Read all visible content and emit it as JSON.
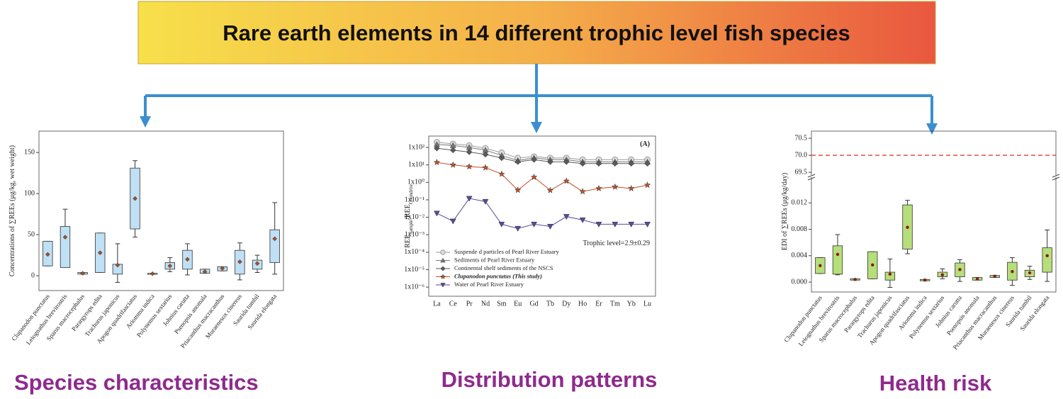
{
  "header": {
    "title": "Rare earth elements in 14 different trophic level fish species"
  },
  "chart_data": [
    {
      "type": "box",
      "caption": "Species characteristics",
      "ylabel": "Concentrations of ∑REEs (μg/kg, wet weight)",
      "categories": [
        "Clupanodon punctatus",
        "Leiognathus brevirostris",
        "Sparus macrocephalus",
        "Parargyrops edita",
        "Trachurus japonicus",
        "Apogon quadrifasciatus",
        "Ariomma indica",
        "Polynemus sextarius",
        "Johnius carutta",
        "Psenopsis anomala",
        "Priacanthus macracanthus",
        "Muraenesox cinereus",
        "Saurida tumbil",
        "Saurida elongata"
      ],
      "min": [
        12,
        13,
        2,
        4,
        -8,
        47,
        2,
        5,
        1,
        3,
        6,
        -5,
        4,
        2
      ],
      "q1": [
        12,
        10,
        2,
        4,
        2,
        57,
        2,
        8,
        8,
        3,
        6,
        2,
        8,
        16
      ],
      "q3": [
        42,
        60,
        4,
        52,
        14,
        131,
        3,
        16,
        31,
        8,
        11,
        31,
        19,
        56
      ],
      "max": [
        42,
        81,
        4,
        52,
        39,
        140,
        3,
        22,
        39,
        8,
        11,
        40,
        25,
        89
      ],
      "mean": [
        26,
        47,
        3,
        28,
        13,
        94,
        2.5,
        12,
        20,
        5,
        9,
        17,
        15,
        45
      ],
      "color": "#bfe0f5",
      "mean_color": "#a0502a",
      "ylim": [
        -18,
        176
      ],
      "yticks": [
        0,
        50,
        100,
        150
      ]
    },
    {
      "type": "line",
      "caption": "Distribution patterns",
      "ylabel_parts": [
        "REE",
        "Sample",
        "/REE",
        "Chondrite"
      ],
      "annotations": [
        "(A)",
        "Trophic level=2.9±0.29"
      ],
      "log_scale": true,
      "categories": [
        "La",
        "Ce",
        "Pr",
        "Nd",
        "Sm",
        "Eu",
        "Gd",
        "Tb",
        "Dy",
        "Ho",
        "Er",
        "Tm",
        "Yb",
        "Lu"
      ],
      "series": [
        {
          "name": "Suspende d particles of Pearl River Estuary",
          "color": "#9a9a9a",
          "marker": "circle",
          "values": [
            200,
            160,
            130,
            90,
            50,
            25,
            30,
            25,
            25,
            20,
            20,
            20,
            20,
            20
          ]
        },
        {
          "name": "Sediments of Pearl River Estuary",
          "color": "#7a7a7a",
          "marker": "triangle",
          "values": [
            150,
            130,
            100,
            70,
            35,
            18,
            25,
            20,
            20,
            15,
            15,
            15,
            15,
            15
          ]
        },
        {
          "name": "Continental shelf sediments of the NSCS",
          "color": "#5a5a5a",
          "marker": "diamond",
          "values": [
            90,
            70,
            55,
            40,
            25,
            15,
            20,
            15,
            15,
            12,
            12,
            12,
            12,
            12
          ]
        },
        {
          "name": "Clupanodon punctatus  (This study)",
          "color": "#c0502a",
          "marker": "star",
          "values": [
            14,
            10,
            8,
            7,
            3,
            0.36,
            2,
            0.35,
            1.2,
            0.3,
            0.45,
            0.55,
            0.45,
            0.7
          ]
        },
        {
          "name": "Water of Pearl River Estuary",
          "color": "#5a4a9a",
          "marker": "triangle-down",
          "values": [
            0.017,
            0.006,
            0.12,
            0.08,
            0.004,
            0.0023,
            0.004,
            0.003,
            0.011,
            0.007,
            0.004,
            0.004,
            0.004,
            0.004
          ]
        }
      ],
      "ylim": [
        3e-07,
        450
      ],
      "yticks": [
        {
          "value": 100,
          "label": "1x10²"
        },
        {
          "value": 10,
          "label": "1x10¹"
        },
        {
          "value": 1,
          "label": "1x10⁰"
        },
        {
          "value": 0.1,
          "label": "1x10⁻¹"
        },
        {
          "value": 0.01,
          "label": "1x10⁻²"
        },
        {
          "value": 0.001,
          "label": "1x10⁻³"
        },
        {
          "value": 0.0001,
          "label": "1x10⁻⁴"
        },
        {
          "value": 1e-05,
          "label": "1x10⁻⁵"
        },
        {
          "value": 1e-06,
          "label": "1x10⁻⁶"
        }
      ]
    },
    {
      "type": "box",
      "caption": "Health risk",
      "ylabel": "EDI of ∑REEs (μg/kg/day)",
      "categories": [
        "Clupanodon punctatus",
        "Leiognathus brevirostris",
        "Sparus macrocephalus",
        "Parargyrops edita",
        "Trachurus japonicus",
        "Apogon quadrifasciatus",
        "Ariomma indica",
        "Polynemus sextarius",
        "Johnius carutta",
        "Psenopsis anomala",
        "Priacanthus macracanthus",
        "Muraenesox cinereus",
        "Saurida tumbil",
        "Saurida elongata"
      ],
      "min": [
        0.0013,
        0.0011,
        0.0003,
        0.0005,
        -0.0008,
        0.0043,
        0.0002,
        0.0005,
        0.0001,
        0.0003,
        0.0007,
        -0.0005,
        0.0004,
        0.0001
      ],
      "q1": [
        0.0013,
        0.0012,
        0.0003,
        0.0005,
        0.0003,
        0.005,
        0.0002,
        0.0008,
        0.0008,
        0.0003,
        0.0007,
        0.0003,
        0.0008,
        0.0015
      ],
      "q3": [
        0.0037,
        0.0055,
        0.0005,
        0.0046,
        0.0015,
        0.0117,
        0.0004,
        0.0015,
        0.0029,
        0.0007,
        0.001,
        0.003,
        0.0018,
        0.0052
      ],
      "max": [
        0.0037,
        0.0072,
        0.0005,
        0.0046,
        0.0035,
        0.0124,
        0.0004,
        0.002,
        0.0034,
        0.0007,
        0.001,
        0.0037,
        0.0024,
        0.0079
      ],
      "mean": [
        0.0025,
        0.0042,
        0.0004,
        0.0026,
        0.0012,
        0.0083,
        0.0003,
        0.0011,
        0.0019,
        0.0005,
        0.0009,
        0.0016,
        0.0014,
        0.004
      ],
      "color": "#b6de7a",
      "mean_color": "#8b1a1a",
      "ylim": [
        -0.0015,
        0.0159
      ],
      "yticks": [
        {
          "value": 0,
          "label": "0.000"
        },
        {
          "value": 0.004,
          "label": "0.004"
        },
        {
          "value": 0.008,
          "label": "0.008"
        },
        {
          "value": 0.012,
          "label": "0.012"
        }
      ],
      "ylim_upper": [
        69.42,
        70.71
      ],
      "yticks_upper": [
        69.5,
        {
          "value": 70,
          "label": "70.0"
        },
        70.5
      ],
      "reference_line": 70,
      "reference_color": "#e05040"
    }
  ]
}
